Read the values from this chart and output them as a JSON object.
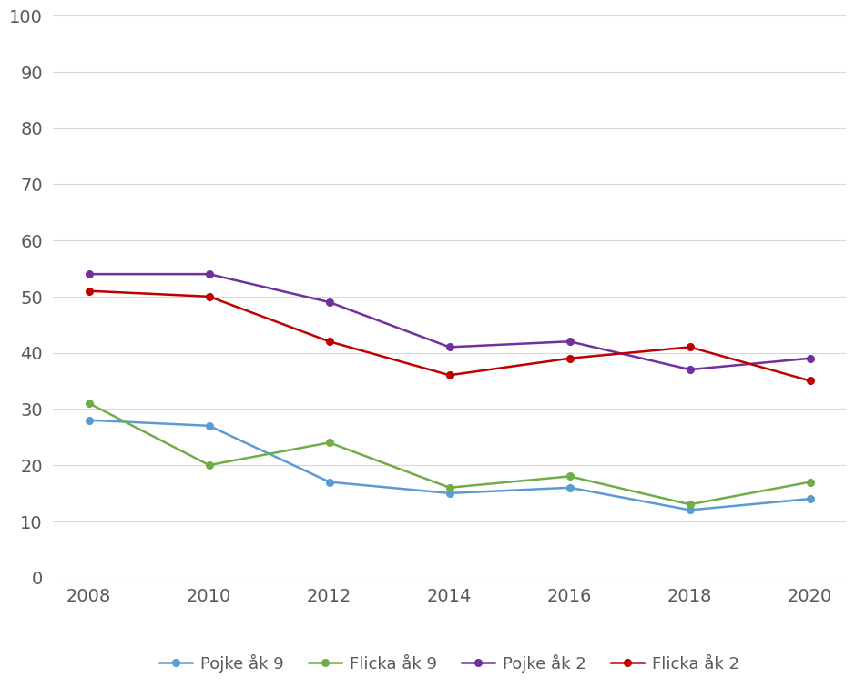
{
  "years": [
    2008,
    2010,
    2012,
    2014,
    2016,
    2018,
    2020
  ],
  "pojke_ak9": [
    28,
    27,
    17,
    15,
    16,
    12,
    14
  ],
  "flicka_ak9": [
    31,
    20,
    24,
    16,
    18,
    13,
    17
  ],
  "pojke_ak2": [
    54,
    54,
    49,
    41,
    42,
    37,
    39
  ],
  "flicka_ak2": [
    51,
    50,
    42,
    36,
    39,
    41,
    35
  ],
  "color_pojke_ak9": "#5b9bd5",
  "color_flicka_ak9": "#70ad47",
  "color_pojke_ak2": "#7030a0",
  "color_flicka_ak2": "#c00000",
  "legend_labels": [
    "Pojke åk 9",
    "Flicka åk 9",
    "Pojke åk 2",
    "Flicka åk 2"
  ],
  "ylim": [
    0,
    100
  ],
  "yticks": [
    0,
    10,
    20,
    30,
    40,
    50,
    60,
    70,
    80,
    90,
    100
  ],
  "xticks": [
    2008,
    2010,
    2012,
    2014,
    2016,
    2018,
    2020
  ],
  "background_color": "#ffffff",
  "grid_color": "#d9d9d9",
  "tick_color": "#595959",
  "marker": "o",
  "linewidth": 1.8,
  "markersize": 5.5
}
